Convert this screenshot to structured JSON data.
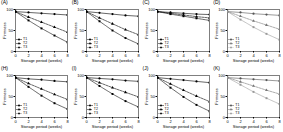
{
  "chart_data": [
    {
      "type": "line",
      "title": "(A)",
      "x_label": "Storage period (weeks)",
      "y_label": "Firmness",
      "x": [
        0,
        2,
        4,
        6,
        8
      ],
      "xlim": [
        0,
        8
      ],
      "xticks": [
        0,
        2,
        4,
        6,
        8
      ],
      "ylim": [
        0,
        100
      ],
      "yticks": [
        0,
        50,
        100
      ],
      "legend": "lower left",
      "series": [
        {
          "name": "T1",
          "color": "#000000",
          "marker": "circle",
          "line_style": "solid",
          "values": [
            95,
            93,
            91,
            89,
            87
          ]
        },
        {
          "name": "T2",
          "color": "#000000",
          "marker": "triangle",
          "line_style": "dashed",
          "values": [
            95,
            82,
            70,
            58,
            46
          ]
        },
        {
          "name": "T3",
          "color": "#000000",
          "marker": "square",
          "line_style": "dotted",
          "values": [
            95,
            74,
            55,
            38,
            22
          ]
        }
      ]
    },
    {
      "type": "line",
      "title": "(B)",
      "x_label": "Storage period (weeks)",
      "y_label": "Firmness",
      "x": [
        0,
        2,
        4,
        6,
        8
      ],
      "xlim": [
        0,
        8
      ],
      "xticks": [
        0,
        2,
        4,
        6,
        8
      ],
      "ylim": [
        0,
        100
      ],
      "yticks": [
        0,
        50,
        100
      ],
      "legend": "lower left",
      "series": [
        {
          "name": "T1",
          "color": "#000000",
          "marker": "circle",
          "line_style": "solid",
          "values": [
            95,
            92,
            89,
            86,
            84
          ]
        },
        {
          "name": "T2",
          "color": "#000000",
          "marker": "triangle",
          "line_style": "dashed",
          "values": [
            95,
            80,
            66,
            52,
            40
          ]
        },
        {
          "name": "T3",
          "color": "#000000",
          "marker": "square",
          "line_style": "dotted",
          "values": [
            95,
            72,
            50,
            32,
            18
          ]
        }
      ]
    },
    {
      "type": "line",
      "title": "(C)",
      "x_label": "Storage period (weeks)",
      "y_label": "Firmness",
      "x": [
        0,
        2,
        4,
        6,
        8
      ],
      "xlim": [
        0,
        8
      ],
      "xticks": [
        0,
        2,
        4,
        6,
        8
      ],
      "ylim": [
        0,
        100
      ],
      "yticks": [
        0,
        50,
        100
      ],
      "legend": "lower left",
      "series": [
        {
          "name": "T1",
          "color": "#000000",
          "marker": "circle",
          "line_style": "solid",
          "values": [
            95,
            93,
            91,
            89,
            88
          ]
        },
        {
          "name": "T2",
          "color": "#000000",
          "marker": "triangle",
          "line_style": "dashed",
          "values": [
            95,
            91,
            87,
            83,
            80
          ]
        },
        {
          "name": "T3",
          "color": "#000000",
          "marker": "square",
          "line_style": "dotted",
          "values": [
            95,
            89,
            84,
            79,
            74
          ]
        }
      ]
    },
    {
      "type": "line",
      "title": "(D)",
      "x_label": "Storage period (weeks)",
      "y_label": "Firmness",
      "x": [
        0,
        2,
        4,
        6,
        8
      ],
      "xlim": [
        0,
        8
      ],
      "xticks": [
        0,
        2,
        4,
        6,
        8
      ],
      "ylim": [
        0,
        100
      ],
      "yticks": [
        0,
        50,
        100
      ],
      "legend": "lower left",
      "series": [
        {
          "name": "T1",
          "color": "#555555",
          "marker": "circle",
          "line_style": "solid",
          "values": [
            95,
            93,
            90,
            88,
            86
          ]
        },
        {
          "name": "T2",
          "color": "#777777",
          "marker": "triangle",
          "line_style": "dashed",
          "values": [
            95,
            84,
            73,
            63,
            53
          ]
        },
        {
          "name": "T3",
          "color": "#999999",
          "marker": "square",
          "line_style": "dotted",
          "values": [
            95,
            76,
            58,
            42,
            28
          ]
        }
      ]
    },
    {
      "type": "line",
      "title": "(H)",
      "x_label": "Storage period (weeks)",
      "y_label": "Firmness",
      "x": [
        0,
        2,
        4,
        6,
        8
      ],
      "xlim": [
        0,
        8
      ],
      "xticks": [
        0,
        2,
        4,
        6,
        8
      ],
      "ylim": [
        0,
        100
      ],
      "yticks": [
        0,
        50,
        100
      ],
      "legend": "lower left",
      "series": [
        {
          "name": "T1",
          "color": "#000000",
          "marker": "circle",
          "line_style": "solid",
          "values": [
            95,
            92,
            90,
            87,
            85
          ]
        },
        {
          "name": "T2",
          "color": "#000000",
          "marker": "triangle",
          "line_style": "dashed",
          "values": [
            95,
            81,
            68,
            55,
            43
          ]
        },
        {
          "name": "T3",
          "color": "#000000",
          "marker": "square",
          "line_style": "dotted",
          "values": [
            95,
            73,
            52,
            34,
            20
          ]
        }
      ]
    },
    {
      "type": "line",
      "title": "(I)",
      "x_label": "Storage period (weeks)",
      "y_label": "Firmness",
      "x": [
        0,
        2,
        4,
        6,
        8
      ],
      "xlim": [
        0,
        8
      ],
      "xticks": [
        0,
        2,
        4,
        6,
        8
      ],
      "ylim": [
        0,
        100
      ],
      "yticks": [
        0,
        50,
        100
      ],
      "legend": "lower left",
      "series": [
        {
          "name": "T1",
          "color": "#000000",
          "marker": "circle",
          "line_style": "solid",
          "values": [
            95,
            93,
            91,
            88,
            86
          ]
        },
        {
          "name": "T2",
          "color": "#000000",
          "marker": "triangle",
          "line_style": "dashed",
          "values": [
            95,
            83,
            71,
            60,
            49
          ]
        },
        {
          "name": "T3",
          "color": "#000000",
          "marker": "square",
          "line_style": "dotted",
          "values": [
            95,
            75,
            56,
            39,
            25
          ]
        }
      ]
    },
    {
      "type": "line",
      "title": "(J)",
      "x_label": "Storage period (weeks)",
      "y_label": "Firmness",
      "x": [
        0,
        2,
        4,
        6,
        8
      ],
      "xlim": [
        0,
        8
      ],
      "xticks": [
        0,
        2,
        4,
        6,
        8
      ],
      "ylim": [
        0,
        100
      ],
      "yticks": [
        0,
        50,
        100
      ],
      "legend": "lower left",
      "series": [
        {
          "name": "T1",
          "color": "#000000",
          "marker": "circle",
          "line_style": "solid",
          "values": [
            95,
            92,
            89,
            86,
            83
          ]
        },
        {
          "name": "T2",
          "color": "#000000",
          "marker": "triangle",
          "line_style": "dashed",
          "values": [
            95,
            80,
            65,
            51,
            38
          ]
        },
        {
          "name": "T3",
          "color": "#000000",
          "marker": "square",
          "line_style": "dotted",
          "values": [
            95,
            71,
            49,
            30,
            15
          ]
        }
      ]
    },
    {
      "type": "line",
      "title": "(K)",
      "x_label": "Storage period (weeks)",
      "y_label": "Firmness",
      "x": [
        0,
        2,
        4,
        6,
        8
      ],
      "xlim": [
        0,
        8
      ],
      "xticks": [
        0,
        2,
        4,
        6,
        8
      ],
      "ylim": [
        0,
        100
      ],
      "yticks": [
        0,
        50,
        100
      ],
      "legend": "lower left",
      "series": [
        {
          "name": "T1",
          "color": "#555555",
          "marker": "circle",
          "line_style": "solid",
          "values": [
            95,
            93,
            91,
            89,
            87
          ]
        },
        {
          "name": "T2",
          "color": "#777777",
          "marker": "triangle",
          "line_style": "dashed",
          "values": [
            95,
            85,
            75,
            65,
            56
          ]
        },
        {
          "name": "T3",
          "color": "#999999",
          "marker": "square",
          "line_style": "dotted",
          "values": [
            95,
            78,
            61,
            46,
            32
          ]
        }
      ]
    }
  ]
}
